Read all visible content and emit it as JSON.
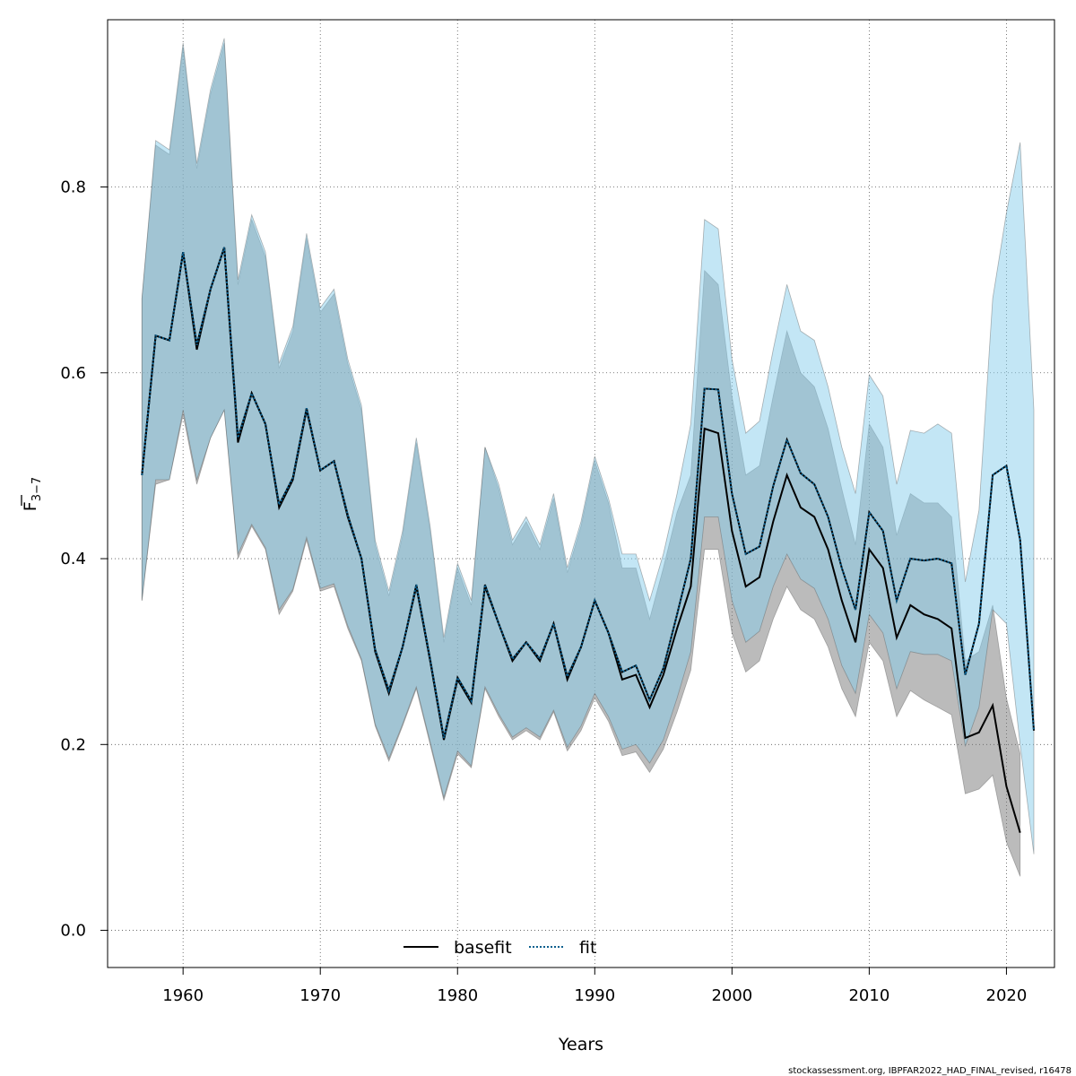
{
  "chart_data": {
    "type": "line",
    "xlabel": "Years",
    "ylabel_main": "F",
    "ylabel_sub": "3−7",
    "xlim": [
      1954.5,
      2023.5
    ],
    "ylim": [
      -0.04,
      0.98
    ],
    "xticks": [
      1960,
      1970,
      1980,
      1990,
      2000,
      2010,
      2020
    ],
    "yticks": [
      0.0,
      0.2,
      0.4,
      0.6,
      0.8
    ],
    "ytick_labels": [
      "0.0",
      "0.2",
      "0.4",
      "0.6",
      "0.8"
    ],
    "grid": true,
    "legend_position": "bottom",
    "credit": "stockassessment.org, IBPFAR2022_HAD_FINAL_revised, r16478",
    "colors": {
      "basefit_line": "#000000",
      "basefit_band": "rgba(120,120,120,0.5)",
      "fit_line": "#0B5F8E",
      "fit_band": "rgba(135,206,235,0.5)",
      "grid": "#555555"
    },
    "series": [
      {
        "name": "basefit",
        "style": "solid",
        "x": [
          1957,
          1958,
          1959,
          1960,
          1961,
          1962,
          1963,
          1964,
          1965,
          1966,
          1967,
          1968,
          1969,
          1970,
          1971,
          1972,
          1973,
          1974,
          1975,
          1976,
          1977,
          1978,
          1979,
          1980,
          1981,
          1982,
          1983,
          1984,
          1985,
          1986,
          1987,
          1988,
          1989,
          1990,
          1991,
          1992,
          1993,
          1994,
          1995,
          1996,
          1997,
          1998,
          1999,
          2000,
          2001,
          2002,
          2003,
          2004,
          2005,
          2006,
          2007,
          2008,
          2009,
          2010,
          2011,
          2012,
          2013,
          2014,
          2015,
          2016,
          2017,
          2018,
          2019,
          2020,
          2021
        ],
        "values": [
          0.49,
          0.64,
          0.635,
          0.73,
          0.625,
          0.69,
          0.735,
          0.525,
          0.578,
          0.545,
          0.455,
          0.485,
          0.56,
          0.495,
          0.505,
          0.445,
          0.4,
          0.3,
          0.255,
          0.305,
          0.37,
          0.29,
          0.205,
          0.27,
          0.245,
          0.37,
          0.33,
          0.29,
          0.31,
          0.29,
          0.33,
          0.27,
          0.305,
          0.355,
          0.32,
          0.27,
          0.275,
          0.24,
          0.275,
          0.325,
          0.37,
          0.54,
          0.535,
          0.43,
          0.37,
          0.38,
          0.44,
          0.49,
          0.455,
          0.445,
          0.41,
          0.355,
          0.31,
          0.41,
          0.39,
          0.315,
          0.35,
          0.34,
          0.335,
          0.325,
          0.207,
          0.213,
          0.242,
          0.155,
          0.105
        ],
        "lower": [
          0.355,
          0.48,
          0.485,
          0.555,
          0.48,
          0.53,
          0.56,
          0.4,
          0.435,
          0.41,
          0.34,
          0.365,
          0.42,
          0.365,
          0.37,
          0.325,
          0.29,
          0.22,
          0.182,
          0.22,
          0.26,
          0.2,
          0.14,
          0.19,
          0.175,
          0.26,
          0.23,
          0.205,
          0.215,
          0.205,
          0.235,
          0.193,
          0.215,
          0.25,
          0.225,
          0.188,
          0.192,
          0.17,
          0.195,
          0.235,
          0.28,
          0.41,
          0.41,
          0.32,
          0.278,
          0.29,
          0.335,
          0.37,
          0.345,
          0.335,
          0.305,
          0.26,
          0.23,
          0.31,
          0.29,
          0.23,
          0.258,
          0.248,
          0.24,
          0.232,
          0.147,
          0.152,
          0.167,
          0.095,
          0.058
        ],
        "upper": [
          0.68,
          0.845,
          0.835,
          0.95,
          0.82,
          0.9,
          0.955,
          0.695,
          0.765,
          0.725,
          0.605,
          0.645,
          0.745,
          0.665,
          0.685,
          0.61,
          0.56,
          0.415,
          0.36,
          0.425,
          0.525,
          0.43,
          0.31,
          0.39,
          0.35,
          0.52,
          0.475,
          0.415,
          0.44,
          0.41,
          0.465,
          0.385,
          0.435,
          0.505,
          0.46,
          0.39,
          0.39,
          0.335,
          0.39,
          0.45,
          0.49,
          0.71,
          0.695,
          0.575,
          0.49,
          0.5,
          0.575,
          0.645,
          0.6,
          0.585,
          0.54,
          0.475,
          0.415,
          0.545,
          0.52,
          0.425,
          0.47,
          0.46,
          0.46,
          0.445,
          0.29,
          0.3,
          0.35,
          0.25,
          0.19
        ]
      },
      {
        "name": "fit",
        "style": "dotted",
        "x": [
          1957,
          1958,
          1959,
          1960,
          1961,
          1962,
          1963,
          1964,
          1965,
          1966,
          1967,
          1968,
          1969,
          1970,
          1971,
          1972,
          1973,
          1974,
          1975,
          1976,
          1977,
          1978,
          1979,
          1980,
          1981,
          1982,
          1983,
          1984,
          1985,
          1986,
          1987,
          1988,
          1989,
          1990,
          1991,
          1992,
          1993,
          1994,
          1995,
          1996,
          1997,
          1998,
          1999,
          2000,
          2001,
          2002,
          2003,
          2004,
          2005,
          2006,
          2007,
          2008,
          2009,
          2010,
          2011,
          2012,
          2013,
          2014,
          2015,
          2016,
          2017,
          2018,
          2019,
          2020,
          2021,
          2022
        ],
        "values": [
          0.49,
          0.64,
          0.635,
          0.73,
          0.63,
          0.69,
          0.735,
          0.53,
          0.578,
          0.545,
          0.458,
          0.487,
          0.562,
          0.495,
          0.505,
          0.447,
          0.4,
          0.302,
          0.258,
          0.305,
          0.372,
          0.292,
          0.207,
          0.272,
          0.247,
          0.372,
          0.33,
          0.292,
          0.31,
          0.292,
          0.33,
          0.273,
          0.305,
          0.355,
          0.32,
          0.278,
          0.285,
          0.248,
          0.282,
          0.34,
          0.4,
          0.583,
          0.582,
          0.47,
          0.405,
          0.413,
          0.478,
          0.528,
          0.492,
          0.48,
          0.445,
          0.39,
          0.345,
          0.45,
          0.43,
          0.355,
          0.4,
          0.398,
          0.4,
          0.395,
          0.275,
          0.33,
          0.49,
          0.5,
          0.42,
          0.215
        ],
        "lower": [
          0.355,
          0.485,
          0.485,
          0.56,
          0.485,
          0.53,
          0.56,
          0.405,
          0.437,
          0.412,
          0.345,
          0.367,
          0.423,
          0.368,
          0.373,
          0.328,
          0.292,
          0.222,
          0.185,
          0.222,
          0.262,
          0.203,
          0.143,
          0.193,
          0.177,
          0.262,
          0.233,
          0.208,
          0.218,
          0.208,
          0.237,
          0.197,
          0.22,
          0.255,
          0.23,
          0.195,
          0.2,
          0.18,
          0.205,
          0.25,
          0.3,
          0.445,
          0.445,
          0.355,
          0.31,
          0.322,
          0.37,
          0.405,
          0.378,
          0.368,
          0.335,
          0.285,
          0.255,
          0.34,
          0.32,
          0.26,
          0.3,
          0.297,
          0.297,
          0.29,
          0.198,
          0.24,
          0.345,
          0.33,
          0.2,
          0.082
        ],
        "upper": [
          0.68,
          0.85,
          0.84,
          0.955,
          0.825,
          0.905,
          0.96,
          0.7,
          0.77,
          0.73,
          0.61,
          0.65,
          0.75,
          0.67,
          0.69,
          0.615,
          0.565,
          0.42,
          0.365,
          0.43,
          0.53,
          0.435,
          0.315,
          0.395,
          0.355,
          0.52,
          0.48,
          0.42,
          0.445,
          0.415,
          0.47,
          0.39,
          0.44,
          0.51,
          0.465,
          0.405,
          0.405,
          0.355,
          0.405,
          0.47,
          0.545,
          0.765,
          0.755,
          0.615,
          0.535,
          0.548,
          0.625,
          0.695,
          0.645,
          0.635,
          0.585,
          0.52,
          0.47,
          0.598,
          0.575,
          0.48,
          0.538,
          0.535,
          0.545,
          0.535,
          0.375,
          0.452,
          0.68,
          0.772,
          0.848,
          0.56
        ]
      }
    ]
  }
}
